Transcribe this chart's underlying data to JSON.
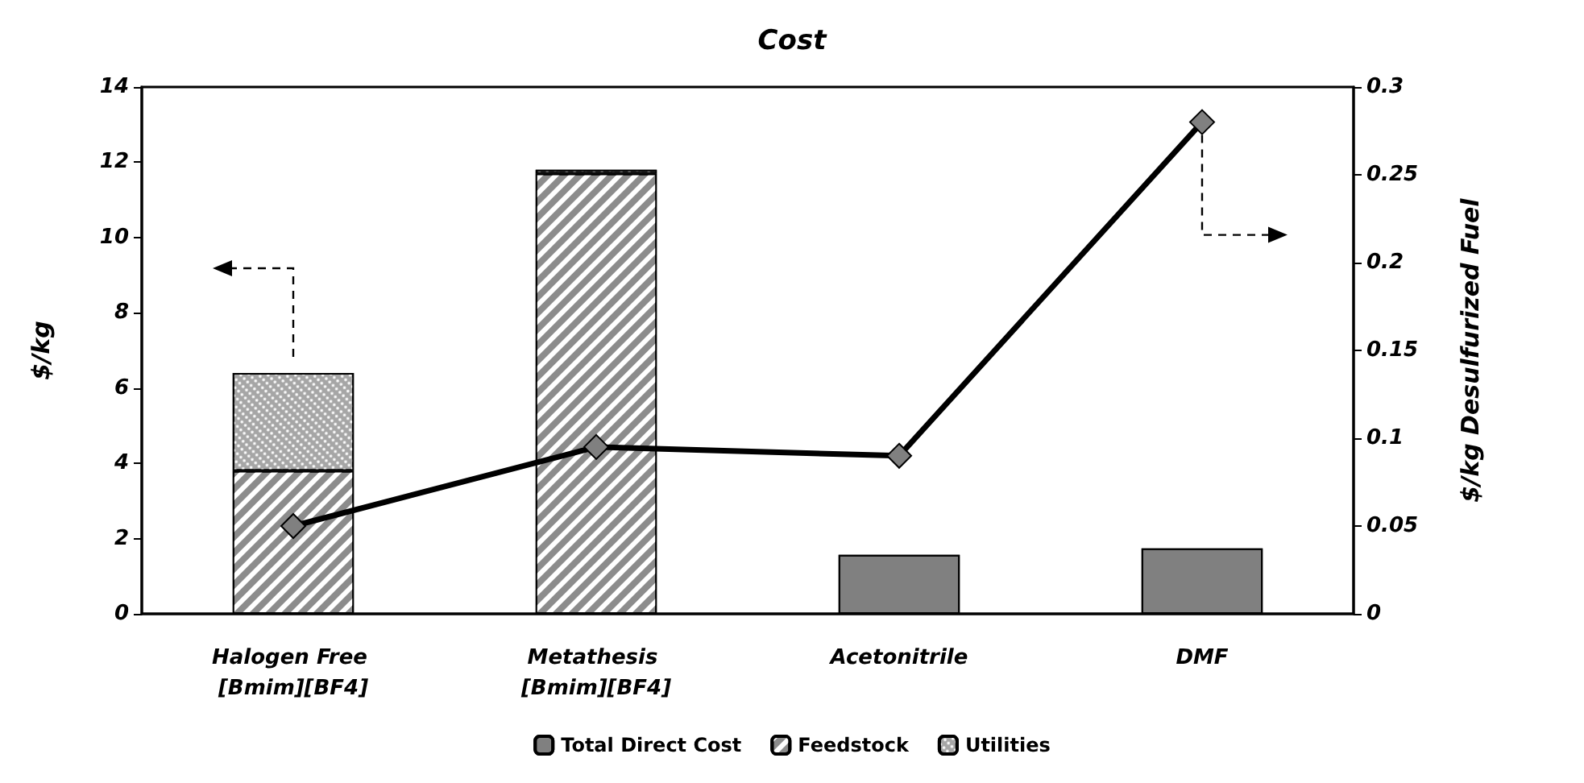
{
  "chart_data": {
    "type": "bar",
    "title": "Cost",
    "ylabel": "$/kg",
    "y2label": "$/kg Desulfurized Fuel",
    "categories": [
      "Halogen Free [Bmim][BF4]",
      "Metathesis [Bmim][BF4]",
      "Acetonitrile",
      "DMF"
    ],
    "stacked": true,
    "series": [
      {
        "name": "Total Direct Cost",
        "color": "#808080",
        "values": [
          null,
          null,
          1.57,
          1.74
        ]
      },
      {
        "name": "Feedstock",
        "color": "#8c8c8c",
        "values": [
          3.8,
          11.7,
          null,
          null
        ]
      },
      {
        "name": "Utilities",
        "color": "#a6a6a6",
        "values": [
          2.6,
          0.1,
          null,
          null
        ]
      },
      {
        "type": "line",
        "axis": "y2",
        "color": "#000000",
        "values": [
          0.05,
          0.095,
          0.09,
          0.28
        ]
      }
    ],
    "marker": "diamond",
    "ylim": [
      0,
      14
    ],
    "yticks": [
      0,
      2,
      4,
      6,
      8,
      10,
      12,
      14
    ],
    "y2lim": [
      0,
      0.3
    ],
    "y2ticks": [
      0,
      0.05,
      0.1,
      0.15,
      0.2,
      0.25,
      0.3
    ],
    "grid": false,
    "legend": "bottom"
  }
}
